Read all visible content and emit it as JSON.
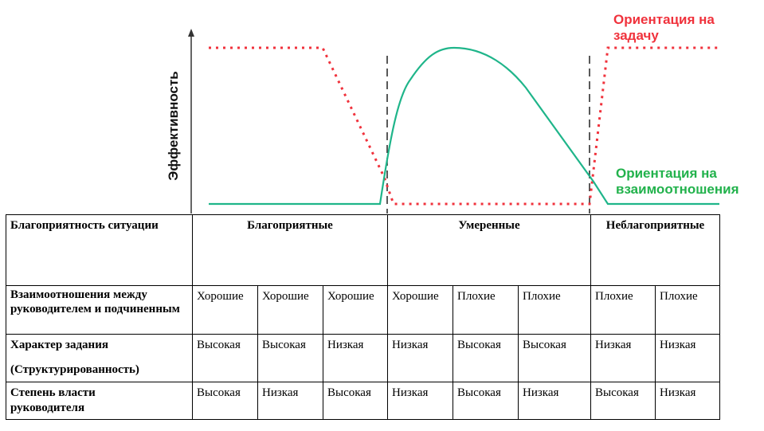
{
  "chart": {
    "y_axis_label": "Эффективность",
    "series": [
      {
        "name": "Ориентация на задачу",
        "label_line1": "Ориентация на",
        "label_line2": "задачу",
        "color": "#f0323c",
        "style": "dotted"
      },
      {
        "name": "Ориентация на взаимоотношения",
        "label_line1": "Ориентация на",
        "label_line2": "взаимоотношения",
        "color": "#1fb58a",
        "label_color": "#22b24c",
        "style": "solid"
      }
    ]
  },
  "table": {
    "row_headers": [
      "Благоприятность ситуации",
      "Взаимоотношения между руководителем и подчиненным",
      "Характер задания",
      "(Структурированность)",
      "Степень власти руководителя"
    ],
    "groups": [
      "Благоприятные",
      "Умеренные",
      "Неблагоприятные"
    ],
    "relations": [
      "Хорошие",
      "Хорошие",
      "Хорошие",
      "Хорошие",
      "Плохие",
      "Плохие",
      "Плохие",
      "Плохие"
    ],
    "task_structure": [
      "Высокая",
      "Высокая",
      "Низкая",
      "Низкая",
      "Высокая",
      "Высокая",
      "Низкая",
      "Низкая"
    ],
    "power": [
      "Высокая",
      "Низкая",
      "Высокая",
      "Низкая",
      "Высокая",
      "Низкая",
      "Высокая",
      "Низкая"
    ]
  }
}
